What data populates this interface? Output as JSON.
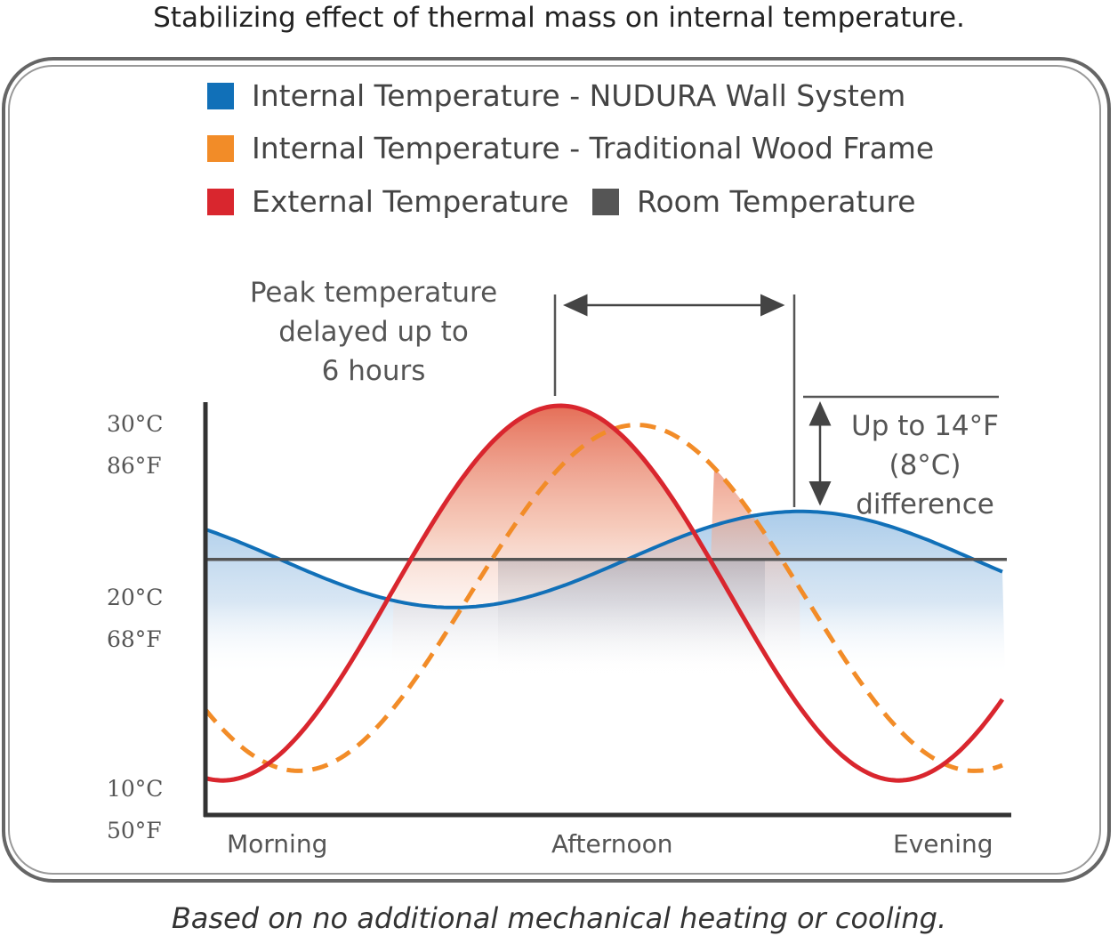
{
  "title": "Stabilizing effect of thermal mass on internal temperature.",
  "footnote": "Based on no additional mechanical heating or cooling.",
  "legend": [
    {
      "label": "Internal Temperature - NUDURA Wall System",
      "color": "#1170b8"
    },
    {
      "label": "Internal Temperature - Traditional Wood Frame",
      "color": "#f28c28"
    },
    {
      "label": "External Temperature",
      "color": "#d9262e"
    },
    {
      "label": "Room Temperature",
      "color": "#555555"
    }
  ],
  "y_ticks": [
    {
      "c": "30°C",
      "f": "86°F"
    },
    {
      "c": "20°C",
      "f": "68°F"
    },
    {
      "c": "10°C",
      "f": "50°F"
    }
  ],
  "x_ticks": [
    "Morning",
    "Afternoon",
    "Evening"
  ],
  "annotations": {
    "peak_delay": [
      "Peak temperature",
      "delayed up to",
      "6 hours"
    ],
    "difference": [
      "Up to 14°F",
      "(8°C)",
      "difference"
    ]
  },
  "chart_data": {
    "type": "line",
    "title": "Stabilizing effect of thermal mass on internal temperature.",
    "x": [
      "Morning",
      "Afternoon",
      "Evening"
    ],
    "y_units": [
      "°C",
      "°F"
    ],
    "ylim_c": [
      10,
      30
    ],
    "series": [
      {
        "name": "External Temperature",
        "color": "#d9262e",
        "style": "solid",
        "peak_c": 30,
        "trough_c": 10.5
      },
      {
        "name": "Internal Temperature - Traditional Wood Frame",
        "color": "#f28c28",
        "style": "dashed",
        "peak_c": 29,
        "trough_c": 11
      },
      {
        "name": "Internal Temperature - NUDURA Wall System",
        "color": "#1170b8",
        "style": "solid",
        "peak_c": 24.5,
        "trough_c": 19.5
      },
      {
        "name": "Room Temperature",
        "color": "#555555",
        "style": "solid",
        "constant_c": 22
      }
    ],
    "grid": false
  }
}
